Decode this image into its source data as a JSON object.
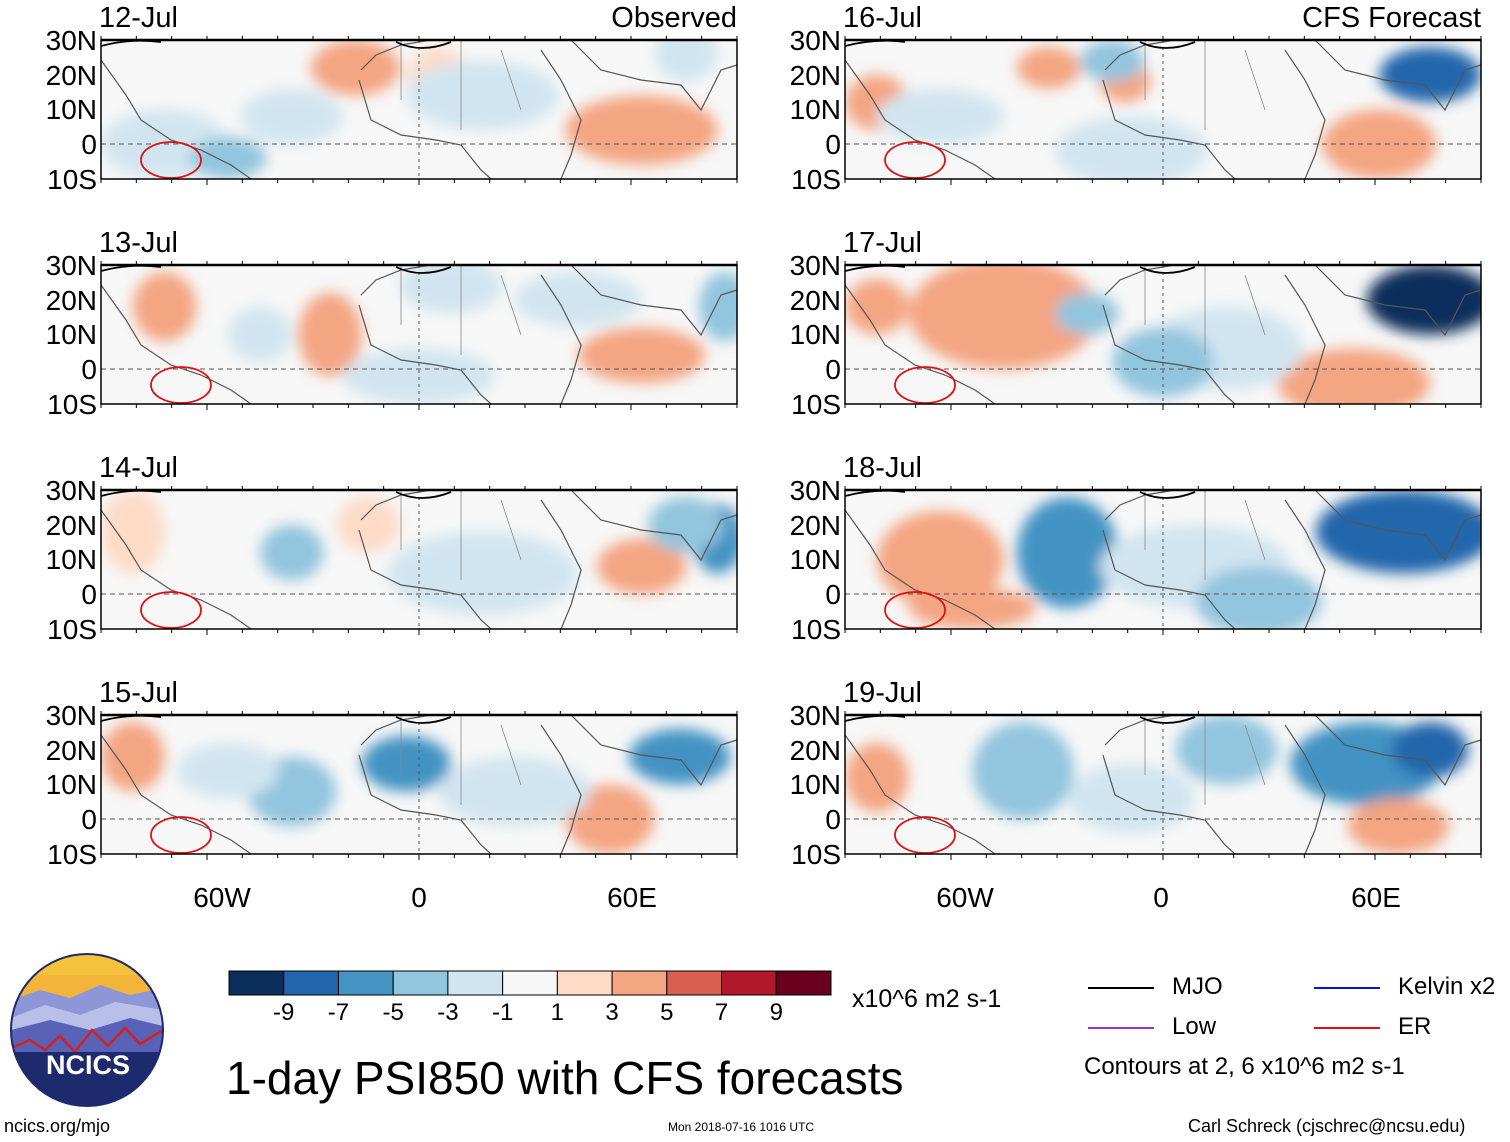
{
  "figure": {
    "title": "1-day PSI850 with CFS forecasts",
    "units": "x10^6 m2 s-1",
    "site": "ncics.org/mjo",
    "timestamp": "Mon 2018-07-16 1016 UTC",
    "author": "Carl Schreck (cjschrec@ncsu.edu)",
    "logo_text": "NCICS",
    "contours_note": "Contours at 2, 6 x10^6 m2 s-1"
  },
  "columns": [
    {
      "label": "Observed",
      "dates": [
        "12-Jul",
        "13-Jul",
        "14-Jul",
        "15-Jul"
      ]
    },
    {
      "label": "CFS Forecast",
      "dates": [
        "16-Jul",
        "17-Jul",
        "18-Jul",
        "19-Jul"
      ]
    }
  ],
  "axes": {
    "lat_labels": [
      "30N",
      "20N",
      "10N",
      "0",
      "10S"
    ],
    "lon_labels": [
      "60W",
      "0",
      "60E"
    ]
  },
  "colorbar": {
    "ticks": [
      "-9",
      "-7",
      "-5",
      "-3",
      "-1",
      "1",
      "3",
      "5",
      "7",
      "9"
    ],
    "colors": [
      "#0a2e5c",
      "#2166ac",
      "#4393c3",
      "#92c5de",
      "#d1e5f0",
      "#f7f7f7",
      "#fddbc7",
      "#f4a582",
      "#d6604d",
      "#b2182b",
      "#67001f"
    ]
  },
  "legend": [
    {
      "name": "MJO",
      "color": "#000000"
    },
    {
      "name": "Kelvin x2",
      "color": "#1010d0"
    },
    {
      "name": "Low",
      "color": "#9a30d8"
    },
    {
      "name": "ER",
      "color": "#e01010"
    }
  ],
  "chart_data": {
    "type": "heatmap",
    "title": "1-day PSI850 with CFS forecasts",
    "variable": "PSI850 anomaly",
    "units": "x10^6 m2 s-1",
    "lat_range": [
      -10,
      30
    ],
    "lon_range": [
      -90,
      90
    ],
    "panels": [
      {
        "date": "12-Jul",
        "source": "Observed"
      },
      {
        "date": "13-Jul",
        "source": "Observed"
      },
      {
        "date": "14-Jul",
        "source": "Observed"
      },
      {
        "date": "15-Jul",
        "source": "Observed"
      },
      {
        "date": "16-Jul",
        "source": "CFS Forecast"
      },
      {
        "date": "17-Jul",
        "source": "CFS Forecast"
      },
      {
        "date": "18-Jul",
        "source": "CFS Forecast"
      },
      {
        "date": "19-Jul",
        "source": "CFS Forecast"
      }
    ],
    "contour_levels": [
      2,
      6
    ]
  }
}
